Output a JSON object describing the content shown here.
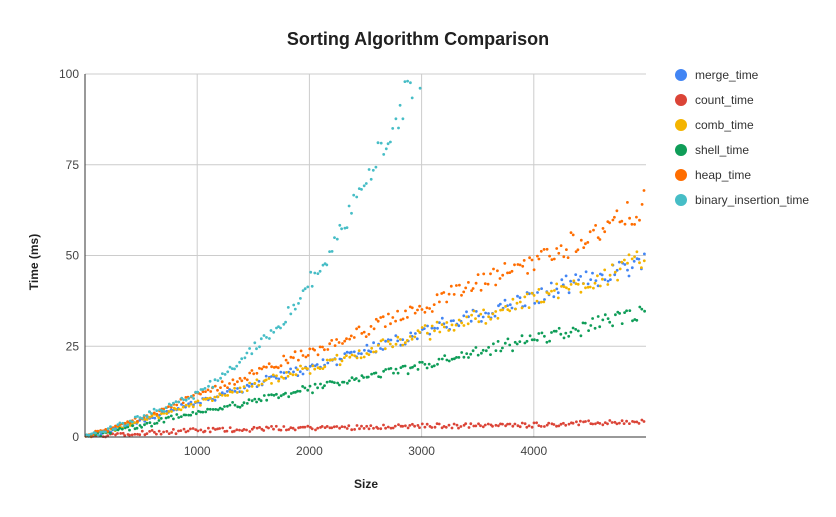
{
  "chart_data": {
    "type": "scatter",
    "title": "Sorting Algorithm Comparison",
    "xlabel": "Size",
    "ylabel": "Time (ms)",
    "xlim": [
      0,
      5000
    ],
    "ylim": [
      0,
      100
    ],
    "x_ticks": [
      1000,
      2000,
      3000,
      4000
    ],
    "x_tick_labels": [
      "1000",
      "2000",
      "3000",
      "4000"
    ],
    "y_ticks": [
      0,
      25,
      50,
      75,
      100
    ],
    "y_tick_labels": [
      "0",
      "25",
      "50",
      "75",
      "100"
    ],
    "grid": true,
    "legend_position": "right",
    "x": [
      0,
      250,
      500,
      750,
      1000,
      1250,
      1500,
      1750,
      2000,
      2250,
      2500,
      2750,
      3000,
      3250,
      3500,
      3750,
      4000,
      4250,
      4500,
      4750,
      5000
    ],
    "series": [
      {
        "name": "merge_time",
        "color": "#4285F4",
        "values": [
          0,
          2,
          4.5,
          7,
          9.5,
          12,
          14.5,
          17,
          19,
          21.5,
          24,
          26.5,
          29,
          31,
          33.5,
          36,
          38.5,
          41,
          43.5,
          46,
          49
        ]
      },
      {
        "name": "count_time",
        "color": "#DB4437",
        "values": [
          0,
          0.8,
          1.2,
          1.5,
          1.8,
          2.0,
          2.2,
          2.4,
          2.5,
          2.6,
          2.8,
          2.9,
          3.0,
          3.1,
          3.2,
          3.3,
          3.4,
          3.6,
          3.8,
          4.0,
          4.2
        ]
      },
      {
        "name": "comb_time",
        "color": "#F4B400",
        "values": [
          0,
          2,
          4.5,
          7,
          9.5,
          12,
          14.5,
          16.5,
          19,
          21,
          23.5,
          26,
          28.5,
          30.5,
          33,
          35.5,
          38,
          40.5,
          43,
          46,
          49
        ]
      },
      {
        "name": "shell_time",
        "color": "#0F9D58",
        "values": [
          0,
          1.5,
          3,
          5,
          6.5,
          8.5,
          10,
          11.5,
          13,
          15,
          16.5,
          18,
          19.5,
          21.5,
          23,
          25,
          27,
          28.5,
          30.5,
          32.5,
          34.5
        ]
      },
      {
        "name": "heap_time",
        "color": "#FF6D00",
        "values": [
          0,
          2.5,
          5.5,
          8.5,
          11.5,
          14.5,
          17.5,
          20.5,
          23.5,
          26.5,
          29.5,
          32.5,
          36,
          39,
          42,
          45.5,
          48.5,
          52,
          55.5,
          59,
          65
        ]
      },
      {
        "name": "binary_insertion_time",
        "color": "#46BDC6",
        "values": [
          0,
          2.5,
          5.5,
          8.5,
          12,
          17,
          24,
          32,
          42,
          55,
          70,
          87,
          102
        ]
      }
    ]
  }
}
